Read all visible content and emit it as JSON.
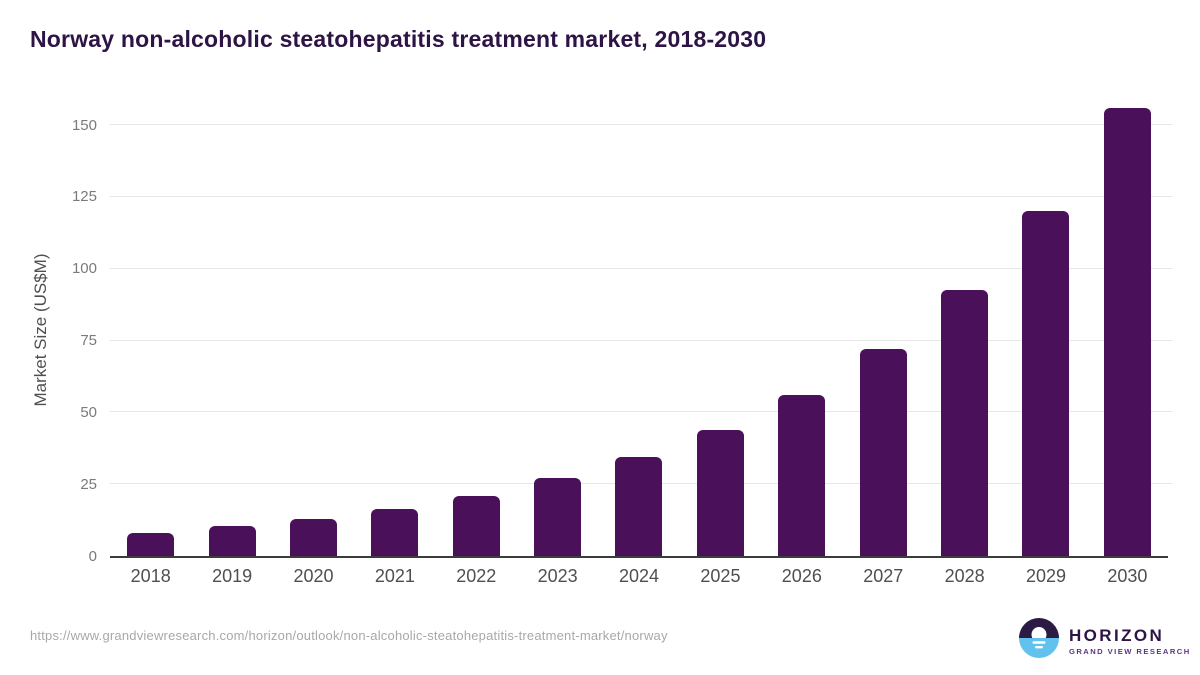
{
  "header": {
    "title": "Norway non-alcoholic steatohepatitis treatment market, 2018-2030",
    "title_color": "#2d1445"
  },
  "chart_data": {
    "type": "bar",
    "title": "Norway non-alcoholic steatohepatitis treatment market, 2018-2030",
    "categories": [
      "2018",
      "2019",
      "2020",
      "2021",
      "2022",
      "2023",
      "2024",
      "2025",
      "2026",
      "2027",
      "2028",
      "2029",
      "2030"
    ],
    "values": [
      8,
      10.5,
      13,
      16.5,
      21,
      27,
      34.5,
      44,
      56,
      72,
      92.5,
      120,
      156
    ],
    "xlabel": "",
    "ylabel": "Market Size (US$M)",
    "ylim": [
      0,
      160
    ],
    "yticks": [
      0,
      25,
      50,
      75,
      100,
      125,
      150
    ],
    "grid": true,
    "legend_position": "none",
    "bar_color": "#4a1059",
    "gridline_color": "#e7e7e7",
    "axis_line_color": "#3c3c3c"
  },
  "footer": {
    "source_url": "https://www.grandviewresearch.com/horizon/outlook/non-alcoholic-steatohepatitis-treatment-market/norway",
    "logo": {
      "brand": "HORIZON",
      "tagline": "GRAND VIEW RESEARCH",
      "icon": "horizon-sun-over-water-icon",
      "icon_top_color": "#2b1a43",
      "icon_bottom_color": "#62c2ee",
      "brand_color": "#2d1445",
      "tagline_color": "#5a3488"
    }
  }
}
